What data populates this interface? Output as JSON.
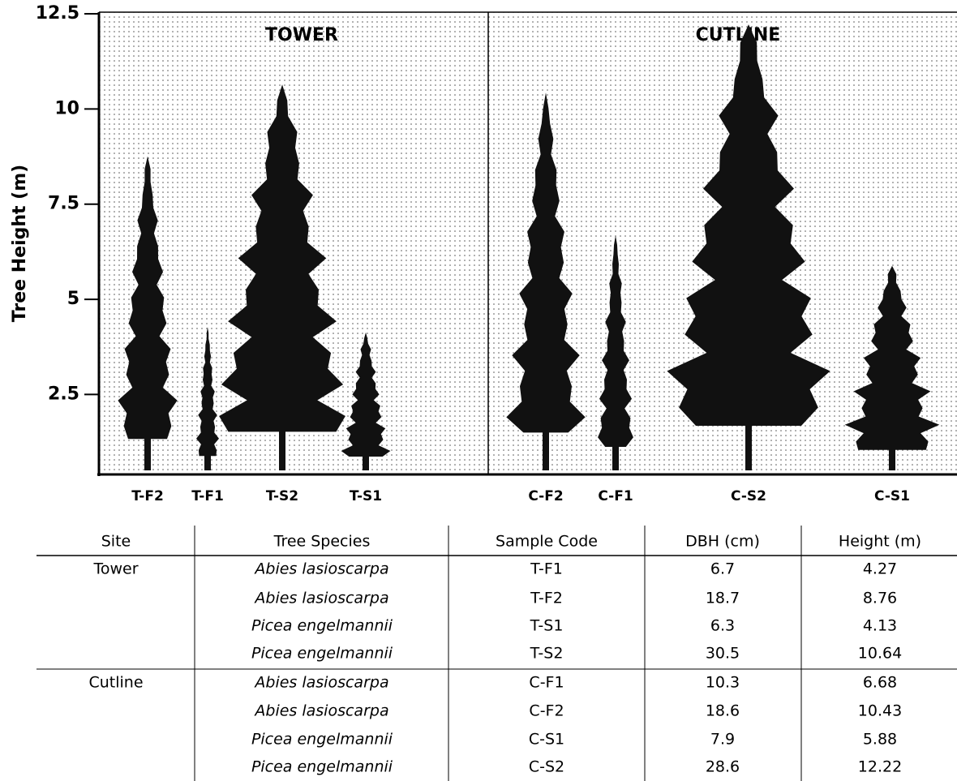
{
  "chart_data": {
    "type": "tree-silhouette",
    "y_label": "Tree Height (m)",
    "panels": [
      "TOWER",
      "CUTLINE"
    ],
    "categories": [
      "T-F2",
      "T-F1",
      "T-S2",
      "T-S1",
      "C-F2",
      "C-F1",
      "C-S2",
      "C-S1"
    ],
    "values": [
      8.76,
      4.27,
      10.64,
      4.13,
      10.43,
      6.68,
      12.22,
      5.88
    ],
    "color": "#111111",
    "ylim": [
      0.4,
      12.5
    ],
    "yticks": [
      2.5,
      5,
      7.5,
      10,
      12.5
    ]
  },
  "table": {
    "header": [
      "Site",
      "Tree Species",
      "Sample Code",
      "DBH (cm)",
      "Height (m)"
    ],
    "groups": [
      {
        "site": "Tower",
        "rows": [
          [
            "Abies lasioscarpa",
            "T-F1",
            6.7,
            4.27
          ],
          [
            "Abies lasioscarpa",
            "T-F2",
            18.7,
            8.76
          ],
          [
            "Picea engelmannii",
            "T-S1",
            6.3,
            4.13
          ],
          [
            "Picea engelmannii",
            "T-S2",
            30.5,
            10.64
          ]
        ]
      },
      {
        "site": "Cutline",
        "rows": [
          [
            "Abies lasioscarpa",
            "C-F1",
            10.3,
            6.68
          ],
          [
            "Abies lasioscarpa",
            "C-F2",
            18.6,
            10.43
          ],
          [
            "Picea engelmannii",
            "C-S1",
            7.9,
            5.88
          ],
          [
            "Picea engelmannii",
            "C-S2",
            28.6,
            12.22
          ]
        ]
      }
    ]
  }
}
